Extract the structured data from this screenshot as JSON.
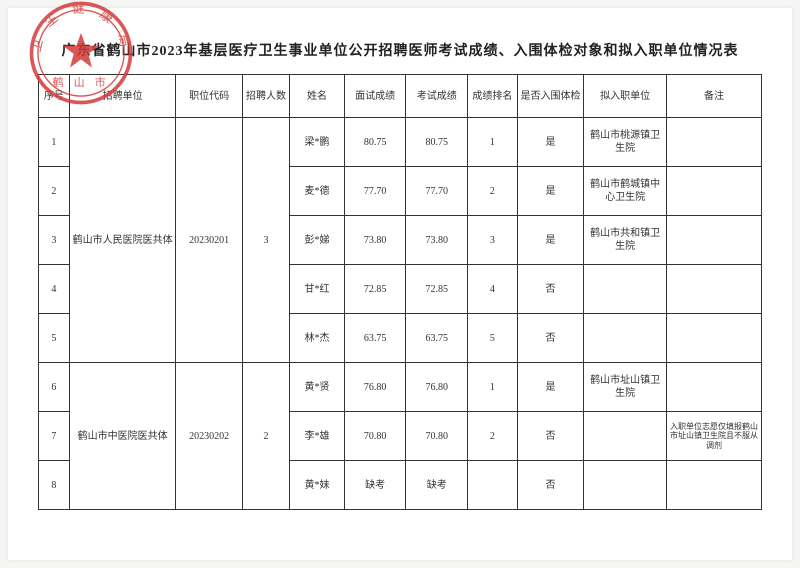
{
  "title": "广东省鹤山市2023年基层医疗卫生事业单位公开招聘医师考试成绩、入围体检对象和拟入职单位情况表",
  "headers": {
    "idx": "序号",
    "unit": "招聘单位",
    "code": "职位代码",
    "cnt": "招聘人数",
    "name": "姓名",
    "sc1": "面试成绩",
    "sc2": "考试成绩",
    "rank": "成绩排名",
    "pass": "是否入围体检",
    "dest": "拟入职单位",
    "note": "备注"
  },
  "groups": [
    {
      "unit": "鹤山市人民医院医共体",
      "code": "20230201",
      "cnt": "3",
      "rows": [
        {
          "idx": "1",
          "name": "梁*鹏",
          "sc1": "80.75",
          "sc2": "80.75",
          "rank": "1",
          "pass": "是",
          "dest": "鹤山市桃源镇卫生院",
          "note": ""
        },
        {
          "idx": "2",
          "name": "麦*德",
          "sc1": "77.70",
          "sc2": "77.70",
          "rank": "2",
          "pass": "是",
          "dest": "鹤山市鹤城镇中心卫生院",
          "note": ""
        },
        {
          "idx": "3",
          "name": "彭*娣",
          "sc1": "73.80",
          "sc2": "73.80",
          "rank": "3",
          "pass": "是",
          "dest": "鹤山市共和镇卫生院",
          "note": ""
        },
        {
          "idx": "4",
          "name": "甘*红",
          "sc1": "72.85",
          "sc2": "72.85",
          "rank": "4",
          "pass": "否",
          "dest": "",
          "note": ""
        },
        {
          "idx": "5",
          "name": "林*杰",
          "sc1": "63.75",
          "sc2": "63.75",
          "rank": "5",
          "pass": "否",
          "dest": "",
          "note": ""
        }
      ]
    },
    {
      "unit": "鹤山市中医院医共体",
      "code": "20230202",
      "cnt": "2",
      "rows": [
        {
          "idx": "6",
          "name": "黄*贤",
          "sc1": "76.80",
          "sc2": "76.80",
          "rank": "1",
          "pass": "是",
          "dest": "鹤山市址山镇卫生院",
          "note": ""
        },
        {
          "idx": "7",
          "name": "李*雄",
          "sc1": "70.80",
          "sc2": "70.80",
          "rank": "2",
          "pass": "否",
          "dest": "",
          "note": "入职单位志愿仅填报鹤山市址山镇卫生院且不服从调剂"
        },
        {
          "idx": "8",
          "name": "黄*妹",
          "sc1": "缺考",
          "sc2": "缺考",
          "rank": "",
          "pass": "否",
          "dest": "",
          "note": ""
        }
      ]
    }
  ],
  "stamp": {
    "color": "#d23b3b",
    "outer_text": "卫 生 健 康 局",
    "inner_text": "鹤 山 市"
  }
}
